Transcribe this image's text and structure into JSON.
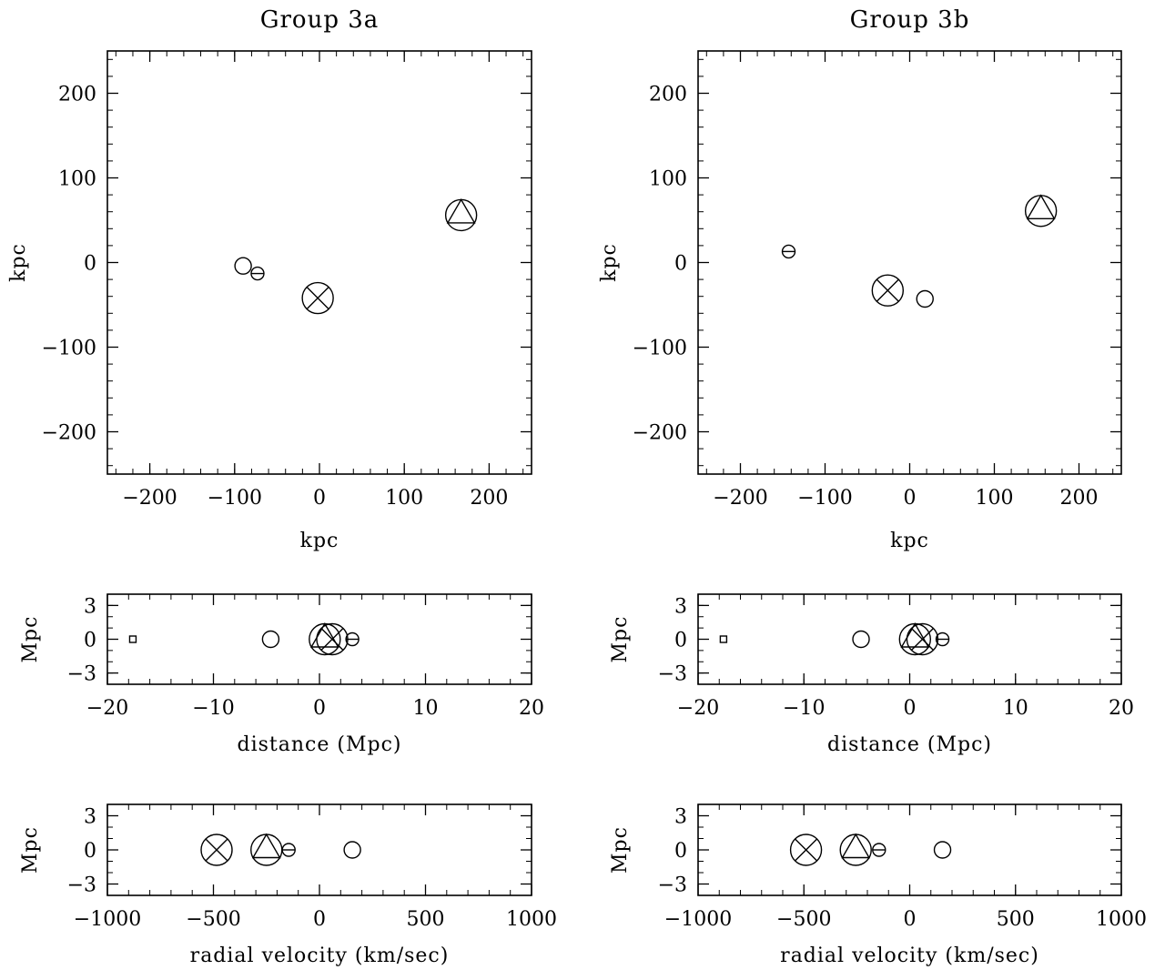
{
  "chart_data": [
    {
      "id": "3a-sky",
      "type": "scatter",
      "title": "Group 3a",
      "xlabel": "kpc",
      "ylabel": "kpc",
      "xlim": [
        -250,
        250
      ],
      "ylim": [
        -250,
        250
      ],
      "xticks": [
        -200,
        -100,
        0,
        100,
        200
      ],
      "yticks": [
        -200,
        -100,
        0,
        100,
        200
      ],
      "points": [
        {
          "x": 167,
          "y": 56,
          "marker": "circle-triangle",
          "size": "large"
        },
        {
          "x": -2,
          "y": -42,
          "marker": "circle-x",
          "size": "large"
        },
        {
          "x": -90,
          "y": -4,
          "marker": "circle",
          "size": "medium"
        },
        {
          "x": -73,
          "y": -13,
          "marker": "circle-bar",
          "size": "small"
        }
      ]
    },
    {
      "id": "3b-sky",
      "type": "scatter",
      "title": "Group 3b",
      "xlabel": "kpc",
      "ylabel": "kpc",
      "xlim": [
        -250,
        250
      ],
      "ylim": [
        -250,
        250
      ],
      "xticks": [
        -200,
        -100,
        0,
        100,
        200
      ],
      "yticks": [
        -200,
        -100,
        0,
        100,
        200
      ],
      "points": [
        {
          "x": 155,
          "y": 61,
          "marker": "circle-triangle",
          "size": "large"
        },
        {
          "x": -26,
          "y": -33,
          "marker": "circle-x",
          "size": "large"
        },
        {
          "x": 18,
          "y": -43,
          "marker": "circle",
          "size": "medium"
        },
        {
          "x": -143,
          "y": 13,
          "marker": "circle-bar",
          "size": "small"
        }
      ]
    },
    {
      "id": "3a-distance",
      "type": "scatter",
      "title": "",
      "xlabel": "distance (Mpc)",
      "ylabel": "Mpc",
      "xlim": [
        -20,
        20
      ],
      "ylim": [
        -4,
        4
      ],
      "xticks": [
        -20,
        -10,
        0,
        10,
        20
      ],
      "yticks": [
        3,
        0,
        -3
      ],
      "points": [
        {
          "x": -17.6,
          "y": 0,
          "marker": "square",
          "size": "tiny"
        },
        {
          "x": -4.6,
          "y": 0,
          "marker": "circle",
          "size": "medium"
        },
        {
          "x": 0.5,
          "y": 0,
          "marker": "circle-triangle",
          "size": "large"
        },
        {
          "x": 1.2,
          "y": 0,
          "marker": "circle-x",
          "size": "large"
        },
        {
          "x": 3.1,
          "y": 0,
          "marker": "circle-bar",
          "size": "small"
        }
      ]
    },
    {
      "id": "3b-distance",
      "type": "scatter",
      "title": "",
      "xlabel": "distance (Mpc)",
      "ylabel": "Mpc",
      "xlim": [
        -20,
        20
      ],
      "ylim": [
        -4,
        4
      ],
      "xticks": [
        -20,
        -10,
        0,
        10,
        20
      ],
      "yticks": [
        3,
        0,
        -3
      ],
      "points": [
        {
          "x": -17.6,
          "y": 0,
          "marker": "square",
          "size": "tiny"
        },
        {
          "x": -4.6,
          "y": 0,
          "marker": "circle",
          "size": "medium"
        },
        {
          "x": 0.5,
          "y": 0,
          "marker": "circle-triangle",
          "size": "large"
        },
        {
          "x": 1.2,
          "y": 0,
          "marker": "circle-x",
          "size": "large"
        },
        {
          "x": 3.1,
          "y": 0,
          "marker": "circle-bar",
          "size": "small"
        }
      ]
    },
    {
      "id": "3a-velocity",
      "type": "scatter",
      "title": "",
      "xlabel": "radial velocity (km/sec)",
      "ylabel": "Mpc",
      "xlim": [
        -1000,
        1000
      ],
      "ylim": [
        -4,
        4
      ],
      "xticks": [
        -1000,
        -500,
        0,
        500,
        1000
      ],
      "yticks": [
        3,
        0,
        -3
      ],
      "points": [
        {
          "x": -485,
          "y": 0,
          "marker": "circle-x",
          "size": "large"
        },
        {
          "x": -250,
          "y": 0,
          "marker": "circle-triangle",
          "size": "large"
        },
        {
          "x": -145,
          "y": 0,
          "marker": "circle-bar",
          "size": "small"
        },
        {
          "x": 155,
          "y": 0,
          "marker": "circle",
          "size": "medium"
        }
      ]
    },
    {
      "id": "3b-velocity",
      "type": "scatter",
      "title": "",
      "xlabel": "radial velocity (km/sec)",
      "ylabel": "Mpc",
      "xlim": [
        -1000,
        1000
      ],
      "ylim": [
        -4,
        4
      ],
      "xticks": [
        -1000,
        -500,
        0,
        500,
        1000
      ],
      "yticks": [
        3,
        0,
        -3
      ],
      "points": [
        {
          "x": -490,
          "y": 0,
          "marker": "circle-x",
          "size": "large"
        },
        {
          "x": -255,
          "y": 0,
          "marker": "circle-triangle",
          "size": "large"
        },
        {
          "x": -145,
          "y": 0,
          "marker": "circle-bar",
          "size": "small"
        },
        {
          "x": 155,
          "y": 0,
          "marker": "circle",
          "size": "medium"
        }
      ]
    }
  ]
}
